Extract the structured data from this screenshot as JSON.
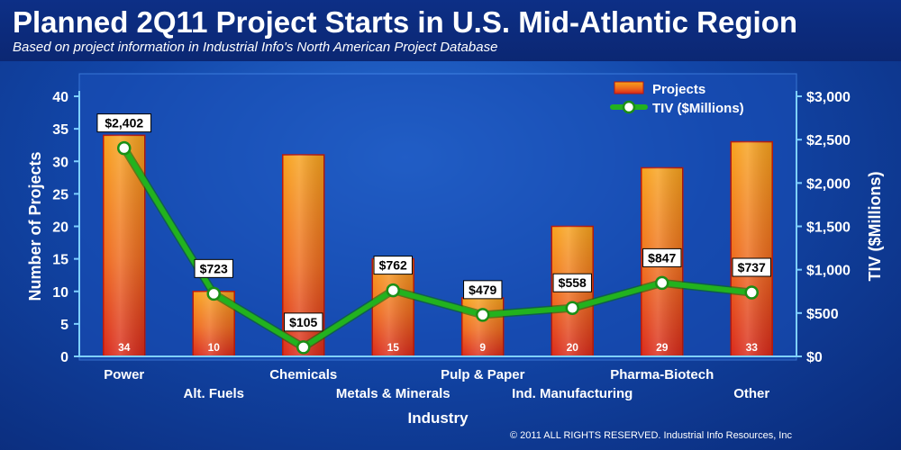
{
  "header": {
    "title": "Planned 2Q11 Project Starts in U.S. Mid-Atlantic Region",
    "subtitle": "Based on project information in Industrial Info's North American Project Database"
  },
  "footer": {
    "copyright": "© 2011 ALL RIGHTS RESERVED. Industrial Info Resources, Inc"
  },
  "chart_data": {
    "type": "bar",
    "title": "Planned 2Q11 Project Starts in U.S. Mid-Atlantic Region",
    "subtitle": "Based on project information in Industrial Info's North American Project Database",
    "xlabel": "Industry",
    "ylabel": "Number of Projects",
    "y2label": "TIV ($Millions)",
    "categories": [
      "Power",
      "Alt. Fuels",
      "Chemicals",
      "Metals & Minerals",
      "Pulp & Paper",
      "Ind. Manufacturing",
      "Pharma-Biotech",
      "Other"
    ],
    "series": [
      {
        "name": "Projects",
        "type": "bar",
        "axis": "left",
        "values": [
          34,
          10,
          31,
          15,
          9,
          20,
          29,
          33
        ],
        "labels": [
          "34",
          "10",
          "",
          "15",
          "9",
          "20",
          "29",
          "33"
        ],
        "color": "#e8501a"
      },
      {
        "name": "TIV ($Millions)",
        "type": "line",
        "axis": "right",
        "values": [
          2402,
          723,
          105,
          762,
          479,
          558,
          847,
          737
        ],
        "labels": [
          "$2,402",
          "$723",
          "$105",
          "$762",
          "$479",
          "$558",
          "$847",
          "$737"
        ],
        "color": "#22b21e"
      }
    ],
    "ylim": [
      0,
      40
    ],
    "yticks": [
      "0",
      "5",
      "10",
      "15",
      "20",
      "25",
      "30",
      "35",
      "40"
    ],
    "y2lim": [
      0,
      3000
    ],
    "y2ticks": [
      "$0",
      "$500",
      "$1,000",
      "$1,500",
      "$2,000",
      "$2,500",
      "$3,000"
    ],
    "legend_position": "top-right",
    "grid": false
  }
}
